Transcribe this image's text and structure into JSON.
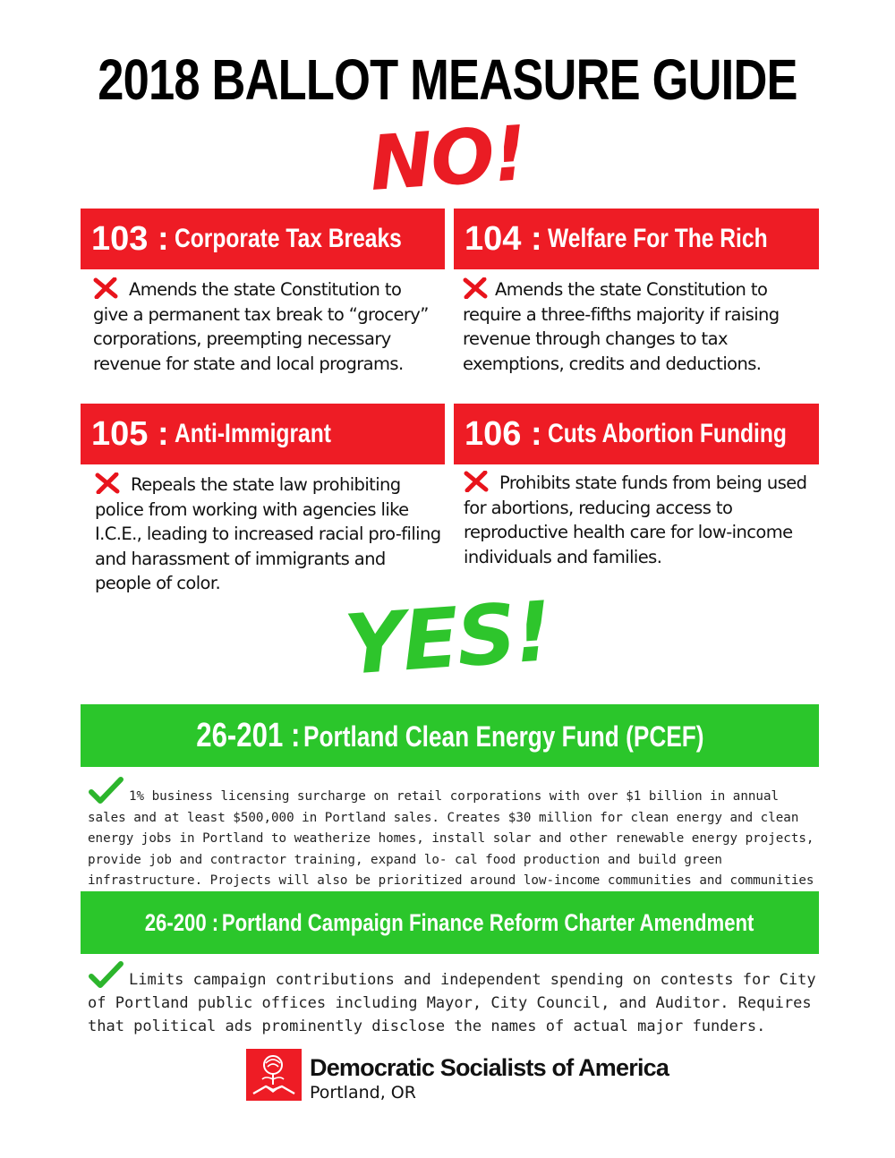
{
  "title": "2018 BALLOT MEASURE GUIDE",
  "no_word": "NO!",
  "yes_word": "YES!",
  "no_measures": [
    {
      "number": "103",
      "separator": " :",
      "label": "Corporate Tax Breaks",
      "description": "Amends the state Constitution to give a permanent tax break to “grocery” corporations, preempting necessary revenue for state and local programs."
    },
    {
      "number": "104",
      "separator": " :",
      "label": "Welfare For The Rich",
      "description": "Amends the state Constitution to require a three-fifths majority if raising revenue through changes to tax exemptions, credits and deductions."
    },
    {
      "number": "105",
      "separator": " :",
      "label": "Anti-Immigrant",
      "description": "Repeals the state law prohibiting police from working with agencies like I.C.E., leading to increased racial pro-filing and harassment of immigrants and people of color."
    },
    {
      "number": "106",
      "separator": " :",
      "label": "Cuts Abortion Funding",
      "description": "Prohibits state funds from being used for abortions, reducing access to reproductive health care for low-income individuals and families."
    }
  ],
  "yes_measures": [
    {
      "number": "26-201",
      "separator": " :",
      "label": "Portland Clean Energy Fund (PCEF)",
      "description": "1% business licensing surcharge on retail corporations with over $1 billion in annual sales and at least $500,000 in Portland sales. Creates $30 million for clean energy and clean energy jobs in Portland to weatherize homes, install solar and other renewable energy projects, provide job and contractor training, expand lo- cal food production and build green infrastructure. Projects will also be prioritized around low-income communities and communities of color."
    },
    {
      "number": "26-200",
      "separator": " :",
      "label": "Portland Campaign Finance Reform Charter Amendment",
      "description": "Limits campaign contributions and independent spending on contests for City of Portland public offices including Mayor, City Council, and Auditor. Requires that political ads prominently disclose the names of actual major funders."
    }
  ],
  "org": {
    "name": "Democratic Socialists of America",
    "location": "Portland, OR"
  },
  "colors": {
    "no_red": "#ee1c25",
    "yes_green": "#2bc62b"
  },
  "icons": {
    "no": "x-icon",
    "yes": "check-icon",
    "logo": "rose-handshake-logo"
  }
}
